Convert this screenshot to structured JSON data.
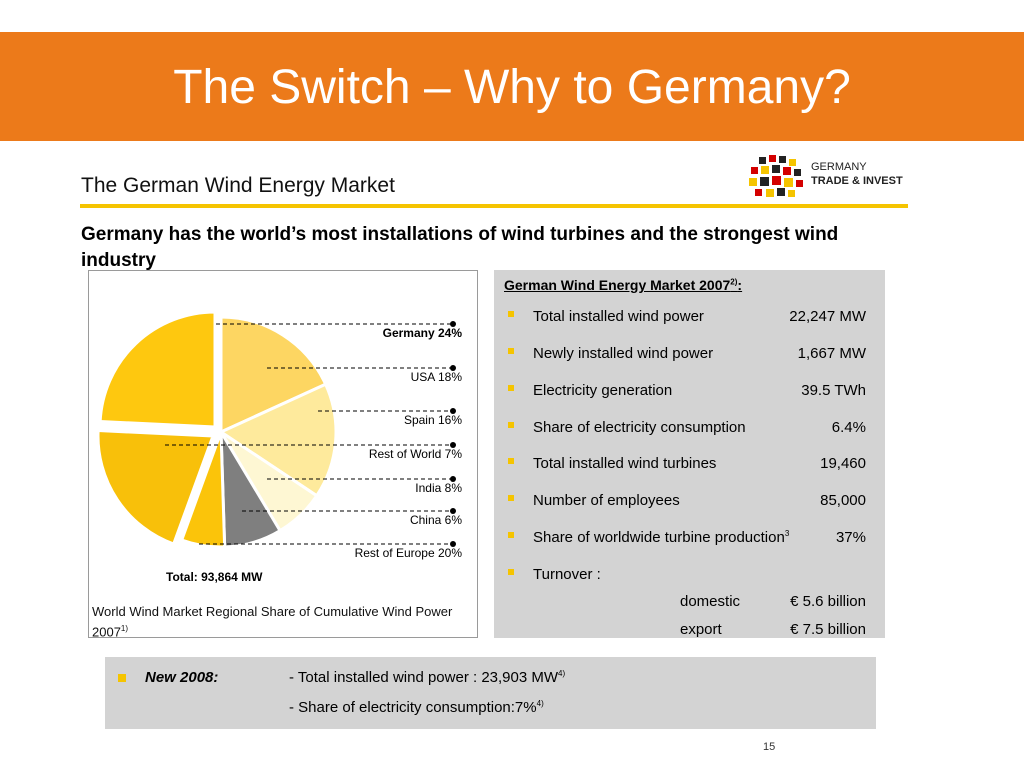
{
  "slide": {
    "title": "The Switch – Why to Germany?",
    "subtitle": "The German Wind Energy Market",
    "headline": "Germany has the world’s most installations of wind turbines and the strongest wind industry",
    "page_number": "15"
  },
  "logo": {
    "line1": "GERMANY",
    "line2": "TRADE & INVEST"
  },
  "colors": {
    "title_bar": "#ec7a1a",
    "accent_yellow": "#f5c400",
    "panel_gray": "#d3d3d3"
  },
  "chart_data": {
    "type": "pie",
    "categories": [
      "Germany",
      "USA",
      "Spain",
      "Rest of World",
      "India",
      "China",
      "Rest of Europe"
    ],
    "display_labels": [
      "Germany 24%",
      "USA 18%",
      "Spain 16%",
      "Rest of World 7%",
      "India 8%",
      "China 6%",
      "Rest of Europe 20%"
    ],
    "values": [
      24,
      18,
      16,
      7,
      8,
      6,
      20
    ],
    "colors": [
      "#fec80f",
      "#fdd662",
      "#feea9c",
      "#fef7d3",
      "#7f7f7f",
      "#fbc40a",
      "#f8c00a"
    ],
    "total_label": "Total: 93,864 MW",
    "caption": "World Wind Market Regional Share of Cumulative Wind Power 2007",
    "caption_sup": "1)"
  },
  "market": {
    "title": "German Wind Energy Market 2007",
    "title_sup": "2)",
    "title_suffix": ":",
    "rows": [
      {
        "label": "Total installed wind power",
        "value": "22,247 MW"
      },
      {
        "label": "Newly installed wind power",
        "value": "1,667 MW"
      },
      {
        "label": "Electricity generation",
        "value": "39.5 TWh"
      },
      {
        "label": "Share of electricity consumption",
        "value": "6.4%"
      },
      {
        "label": "Total installed wind turbines",
        "value": "19,460"
      },
      {
        "label": "Number of employees",
        "value": "85,000"
      },
      {
        "label": "Share of worldwide turbine production",
        "label_sup": "3",
        "value": "37%"
      },
      {
        "label": "Turnover :",
        "value": ""
      }
    ],
    "turnover": [
      {
        "label": "domestic",
        "value": "€ 5.6 billion"
      },
      {
        "label": "export",
        "value": "€ 7.5 billion"
      }
    ]
  },
  "new2008": {
    "heading": "New 2008:",
    "line1": "- Total installed wind power : 23,903 MW",
    "line1_sup": "4)",
    "line2": "- Share of electricity consumption:7%",
    "line2_sup": "4)"
  }
}
